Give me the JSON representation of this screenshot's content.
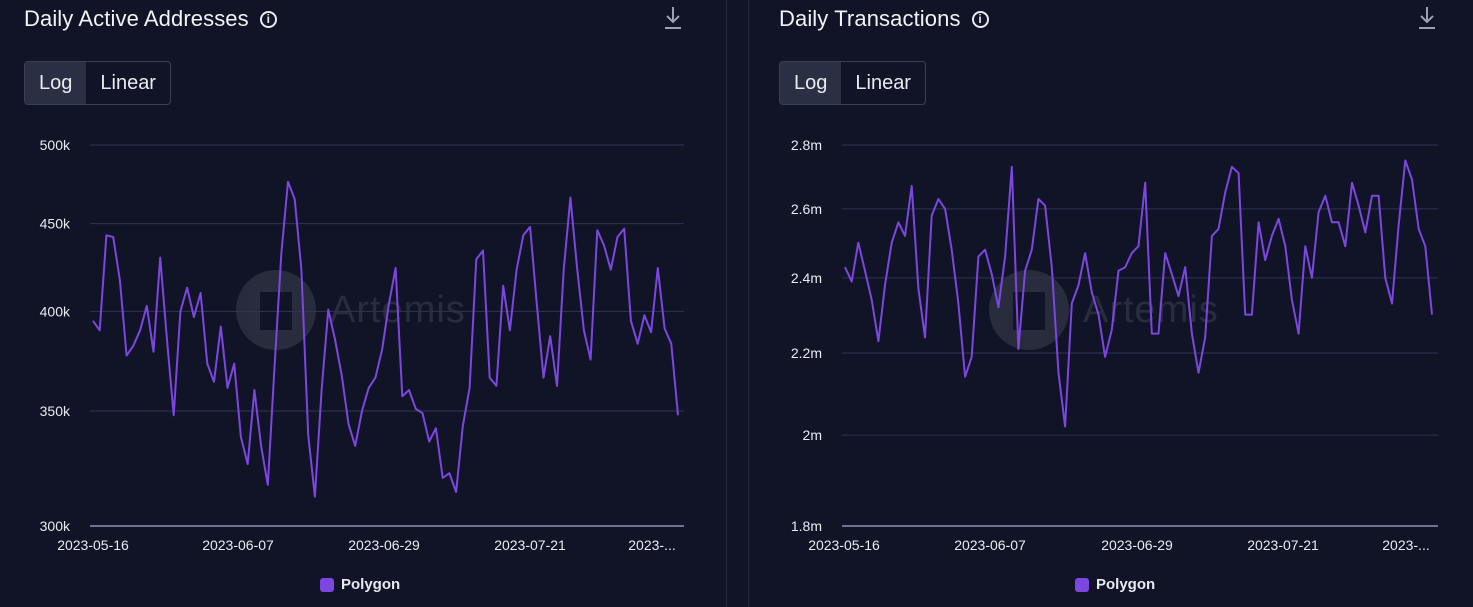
{
  "colors": {
    "line": "#7b47e0",
    "grid": "#2e3352",
    "axis": "#6d7390"
  },
  "panels": [
    {
      "title": "Daily Active Addresses",
      "toggle": {
        "log": "Log",
        "linear": "Linear",
        "selected": "Log"
      },
      "legend": "Polygon",
      "watermark": "Artemis"
    },
    {
      "title": "Daily Transactions",
      "toggle": {
        "log": "Log",
        "linear": "Linear",
        "selected": "Log"
      },
      "legend": "Polygon",
      "watermark": "Artemis"
    }
  ],
  "chart_data": [
    {
      "type": "line",
      "title": "Daily Active Addresses",
      "scale": "log",
      "ylim": [
        300000,
        500000
      ],
      "yticks": [
        300000,
        350000,
        400000,
        450000,
        500000
      ],
      "ytick_labels": [
        "300k",
        "350k",
        "400k",
        "450k",
        "500k"
      ],
      "x_start": "2023-05-16",
      "xtick_labels": [
        "2023-05-16",
        "2023-06-07",
        "2023-06-29",
        "2023-07-21",
        "2023-..."
      ],
      "series": [
        {
          "name": "Polygon",
          "color": "#7b47e0",
          "values": [
            395000,
            390000,
            443000,
            442000,
            417000,
            377000,
            382000,
            390000,
            403000,
            379000,
            430000,
            385000,
            348000,
            400000,
            413000,
            397000,
            410000,
            373000,
            364000,
            392000,
            361000,
            373000,
            338000,
            326000,
            360000,
            334000,
            317000,
            372000,
            432000,
            476000,
            465000,
            423000,
            339000,
            312000,
            360000,
            401000,
            385000,
            367000,
            344000,
            334000,
            350000,
            361000,
            366000,
            380000,
            404000,
            424000,
            357000,
            360000,
            351000,
            349000,
            336000,
            342000,
            320000,
            322000,
            314000,
            343000,
            361000,
            429000,
            434000,
            366000,
            362000,
            414000,
            390000,
            423000,
            443000,
            448000,
            404000,
            366000,
            387000,
            362000,
            423000,
            466000,
            424000,
            390000,
            375000,
            446000,
            437000,
            423000,
            442000,
            447000,
            395000,
            383000,
            398000,
            389000,
            424000,
            391000,
            383000,
            348000
          ]
        }
      ]
    },
    {
      "type": "line",
      "title": "Daily Transactions",
      "scale": "log",
      "ylim": [
        1800000,
        2800000
      ],
      "yticks": [
        1800000,
        2000000,
        2200000,
        2400000,
        2600000,
        2800000
      ],
      "ytick_labels": [
        "1.8m",
        "2m",
        "2.2m",
        "2.4m",
        "2.6m",
        "2.8m"
      ],
      "x_start": "2023-05-16",
      "xtick_labels": [
        "2023-05-16",
        "2023-06-07",
        "2023-06-29",
        "2023-07-21",
        "2023-..."
      ],
      "series": [
        {
          "name": "Polygon",
          "color": "#7b47e0",
          "values": [
            2430000,
            2390000,
            2500000,
            2420000,
            2340000,
            2230000,
            2380000,
            2500000,
            2560000,
            2520000,
            2670000,
            2370000,
            2240000,
            2580000,
            2630000,
            2600000,
            2480000,
            2330000,
            2140000,
            2190000,
            2460000,
            2480000,
            2410000,
            2320000,
            2460000,
            2730000,
            2210000,
            2420000,
            2480000,
            2630000,
            2610000,
            2430000,
            2150000,
            2020000,
            2330000,
            2380000,
            2470000,
            2360000,
            2300000,
            2190000,
            2260000,
            2420000,
            2430000,
            2470000,
            2490000,
            2680000,
            2250000,
            2250000,
            2470000,
            2410000,
            2350000,
            2430000,
            2250000,
            2150000,
            2240000,
            2520000,
            2540000,
            2650000,
            2730000,
            2710000,
            2300000,
            2300000,
            2560000,
            2450000,
            2520000,
            2570000,
            2490000,
            2340000,
            2250000,
            2490000,
            2400000,
            2590000,
            2640000,
            2560000,
            2560000,
            2490000,
            2680000,
            2610000,
            2530000,
            2640000,
            2640000,
            2400000,
            2330000,
            2550000,
            2750000,
            2690000,
            2540000,
            2490000,
            2300000
          ]
        }
      ]
    }
  ]
}
